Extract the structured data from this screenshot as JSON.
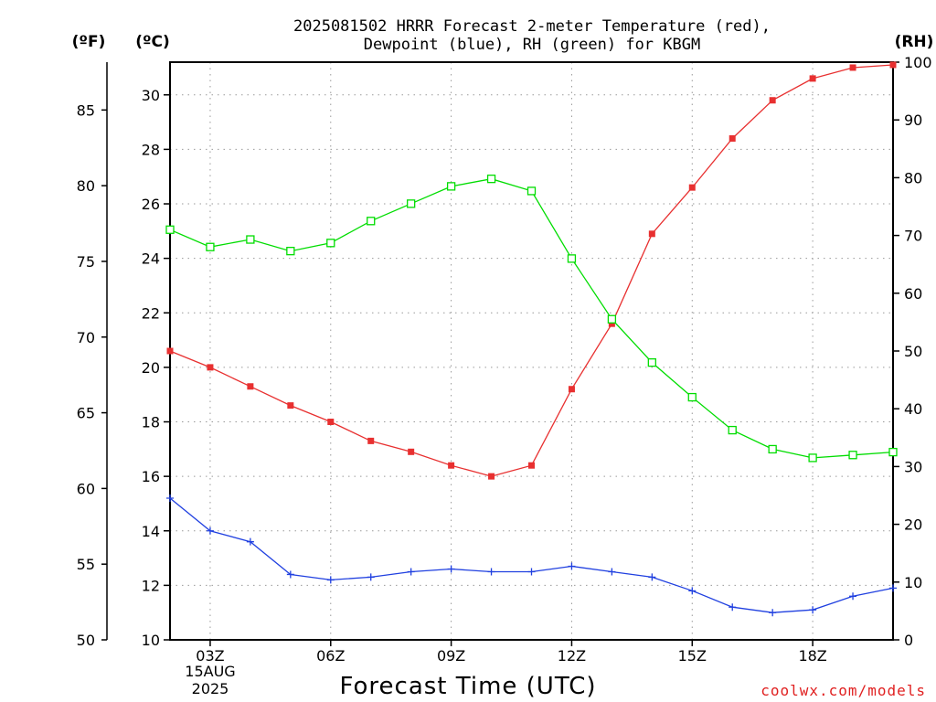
{
  "title_line1": "2025081502 HRRR Forecast 2-meter Temperature (red),",
  "title_line2": "Dewpoint (blue), RH (green) for KBGM",
  "unit_f": "(ºF)",
  "unit_c": "(ºC)",
  "unit_rh": "(RH)",
  "xlabel": "Forecast Time (UTC)",
  "credit": "coolwx.com/models",
  "date_line1": "15AUG",
  "date_line2": "2025",
  "colors": {
    "temperature": "#e83030",
    "dewpoint": "#2040e0",
    "rh": "#00dd00",
    "grid": "#999999"
  },
  "chart_data": {
    "type": "line",
    "x_hours": [
      2,
      3,
      4,
      5,
      6,
      7,
      8,
      9,
      10,
      11,
      12,
      13,
      14,
      15,
      16,
      17,
      18,
      19,
      20
    ],
    "x_ticks": [
      {
        "hour": 3,
        "label": "03Z"
      },
      {
        "hour": 6,
        "label": "06Z"
      },
      {
        "hour": 9,
        "label": "09Z"
      },
      {
        "hour": 12,
        "label": "12Z"
      },
      {
        "hour": 15,
        "label": "15Z"
      },
      {
        "hour": 18,
        "label": "18Z"
      }
    ],
    "xlim": [
      2,
      20
    ],
    "celsius_axis": {
      "range": [
        10,
        31.2
      ],
      "ticks": [
        10,
        12,
        14,
        16,
        18,
        20,
        22,
        24,
        26,
        28,
        30
      ]
    },
    "fahrenheit_axis": {
      "range": [
        50,
        88.16
      ],
      "ticks": [
        50,
        55,
        60,
        65,
        70,
        75,
        80,
        85
      ]
    },
    "rh_axis": {
      "range": [
        0,
        100
      ],
      "ticks": [
        0,
        10,
        20,
        30,
        40,
        50,
        60,
        70,
        80,
        90,
        100
      ]
    },
    "series": [
      {
        "key": "temperature",
        "axis": "celsius",
        "marker": "filled-square",
        "values": [
          20.6,
          20.0,
          19.3,
          18.6,
          18.0,
          17.3,
          16.9,
          16.4,
          16.0,
          16.4,
          19.2,
          21.6,
          24.9,
          26.6,
          28.4,
          29.8,
          30.6,
          31.0,
          31.1
        ]
      },
      {
        "key": "dewpoint",
        "axis": "celsius",
        "marker": "plus",
        "values": [
          15.2,
          14.0,
          13.6,
          12.4,
          12.2,
          12.3,
          12.5,
          12.6,
          12.5,
          12.5,
          12.7,
          12.5,
          12.3,
          11.8,
          11.2,
          11.0,
          11.1,
          11.6,
          11.9
        ]
      },
      {
        "key": "rh",
        "axis": "rh",
        "marker": "open-square",
        "values": [
          71,
          68,
          69.3,
          67.3,
          68.7,
          72.5,
          75.5,
          78.5,
          79.8,
          77.7,
          66,
          55.5,
          48,
          42,
          36.3,
          33,
          31.5,
          32,
          32.5
        ]
      }
    ]
  }
}
